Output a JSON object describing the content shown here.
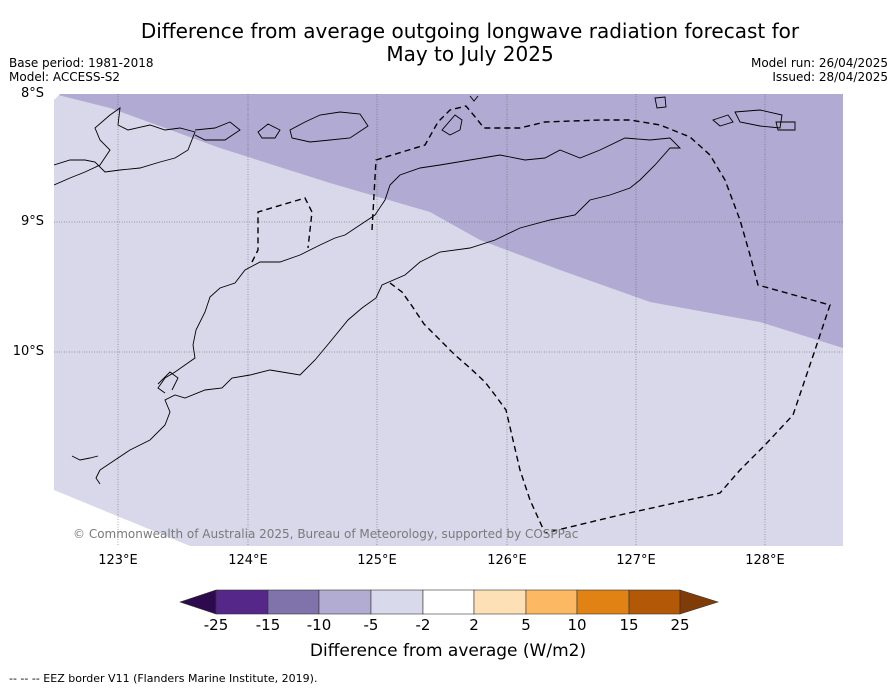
{
  "header": {
    "title_line1": "Difference from average outgoing longwave radiation forecast for",
    "title_line2": "May to July 2025",
    "base_period": "Base period: 1981-2018",
    "model": "Model: ACCESS-S2",
    "model_run": "Model run: 26/04/2025",
    "issued": "Issued: 28/04/2025"
  },
  "map": {
    "lat_labels": [
      "8°S",
      "9°S",
      "10°S"
    ],
    "lon_labels": [
      "123°E",
      "124°E",
      "125°E",
      "126°E",
      "127°E",
      "128°E"
    ],
    "copyright": "© Commonwealth of Australia 2025, Bureau of Meteorology, supported by COSPPac",
    "fill_colors": {
      "minus5_to_minus2": "#d8d8ea",
      "minus10_to_minus5": "#b1aad2"
    }
  },
  "colorbar": {
    "ticks": [
      "-25",
      "-15",
      "-10",
      "-5",
      "-2",
      "2",
      "5",
      "10",
      "15",
      "25"
    ],
    "colors": [
      "#2d0a4e",
      "#542788",
      "#8073ac",
      "#b2abd2",
      "#d8daeb",
      "#ffffff",
      "#fee0b6",
      "#fdb863",
      "#e08214",
      "#b35806",
      "#7f3b08"
    ],
    "label": "Difference from average (W/m2)"
  },
  "footnote": "--  --  -- EEZ border V11 (Flanders Marine Institute, 2019)."
}
